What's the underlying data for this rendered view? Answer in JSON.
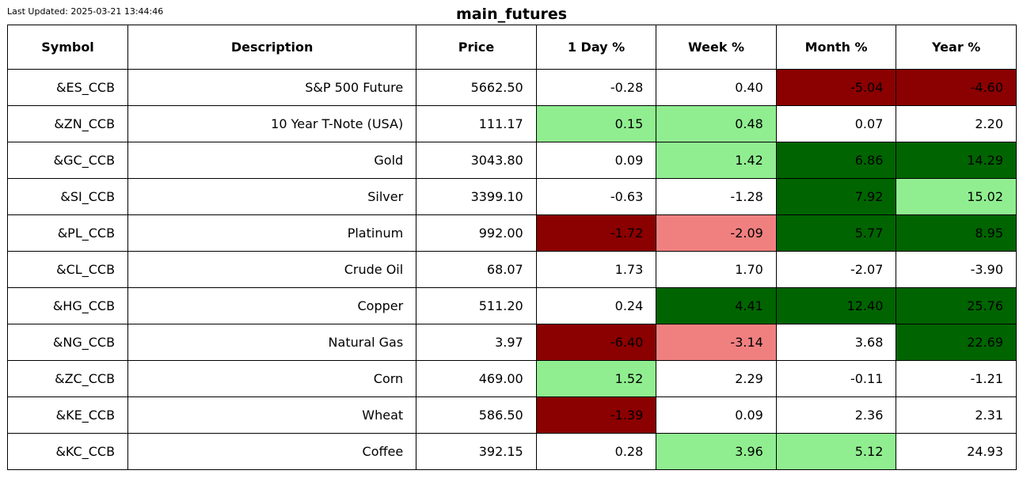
{
  "last_updated": "Last Updated: 2025-03-21 13:44:46",
  "title": "main_futures",
  "colors": {
    "strong_negative": "#8b0000",
    "negative": "#f08080",
    "positive": "#90ee90",
    "strong_positive": "#006400",
    "neutral": "#ffffff"
  },
  "table": {
    "columns": [
      "Symbol",
      "Description",
      "Price",
      "1 Day %",
      "Week %",
      "Month %",
      "Year %"
    ],
    "rows": [
      {
        "symbol": "&ES_CCB",
        "description": "S&P 500 Future",
        "price": "5662.50",
        "day": "-0.28",
        "week": "0.40",
        "month": "-5.04",
        "year": "-4.60",
        "day_color": "neutral",
        "week_color": "neutral",
        "month_color": "strong_negative",
        "year_color": "strong_negative"
      },
      {
        "symbol": "&ZN_CCB",
        "description": "10 Year T-Note (USA)",
        "price": "111.17",
        "day": "0.15",
        "week": "0.48",
        "month": "0.07",
        "year": "2.20",
        "day_color": "positive",
        "week_color": "positive",
        "month_color": "neutral",
        "year_color": "neutral"
      },
      {
        "symbol": "&GC_CCB",
        "description": "Gold",
        "price": "3043.80",
        "day": "0.09",
        "week": "1.42",
        "month": "6.86",
        "year": "14.29",
        "day_color": "neutral",
        "week_color": "positive",
        "month_color": "strong_positive",
        "year_color": "strong_positive"
      },
      {
        "symbol": "&SI_CCB",
        "description": "Silver",
        "price": "3399.10",
        "day": "-0.63",
        "week": "-1.28",
        "month": "7.92",
        "year": "15.02",
        "day_color": "neutral",
        "week_color": "neutral",
        "month_color": "strong_positive",
        "year_color": "positive"
      },
      {
        "symbol": "&PL_CCB",
        "description": "Platinum",
        "price": "992.00",
        "day": "-1.72",
        "week": "-2.09",
        "month": "5.77",
        "year": "8.95",
        "day_color": "strong_negative",
        "week_color": "negative",
        "month_color": "strong_positive",
        "year_color": "strong_positive"
      },
      {
        "symbol": "&CL_CCB",
        "description": "Crude Oil",
        "price": "68.07",
        "day": "1.73",
        "week": "1.70",
        "month": "-2.07",
        "year": "-3.90",
        "day_color": "neutral",
        "week_color": "neutral",
        "month_color": "neutral",
        "year_color": "neutral"
      },
      {
        "symbol": "&HG_CCB",
        "description": "Copper",
        "price": "511.20",
        "day": "0.24",
        "week": "4.41",
        "month": "12.40",
        "year": "25.76",
        "day_color": "neutral",
        "week_color": "strong_positive",
        "month_color": "strong_positive",
        "year_color": "strong_positive"
      },
      {
        "symbol": "&NG_CCB",
        "description": "Natural Gas",
        "price": "3.97",
        "day": "-6.40",
        "week": "-3.14",
        "month": "3.68",
        "year": "22.69",
        "day_color": "strong_negative",
        "week_color": "negative",
        "month_color": "neutral",
        "year_color": "strong_positive"
      },
      {
        "symbol": "&ZC_CCB",
        "description": "Corn",
        "price": "469.00",
        "day": "1.52",
        "week": "2.29",
        "month": "-0.11",
        "year": "-1.21",
        "day_color": "positive",
        "week_color": "neutral",
        "month_color": "neutral",
        "year_color": "neutral"
      },
      {
        "symbol": "&KE_CCB",
        "description": "Wheat",
        "price": "586.50",
        "day": "-1.39",
        "week": "0.09",
        "month": "2.36",
        "year": "2.31",
        "day_color": "strong_negative",
        "week_color": "neutral",
        "month_color": "neutral",
        "year_color": "neutral"
      },
      {
        "symbol": "&KC_CCB",
        "description": "Coffee",
        "price": "392.15",
        "day": "0.28",
        "week": "3.96",
        "month": "5.12",
        "year": "24.93",
        "day_color": "neutral",
        "week_color": "positive",
        "month_color": "positive",
        "year_color": "neutral"
      }
    ]
  }
}
